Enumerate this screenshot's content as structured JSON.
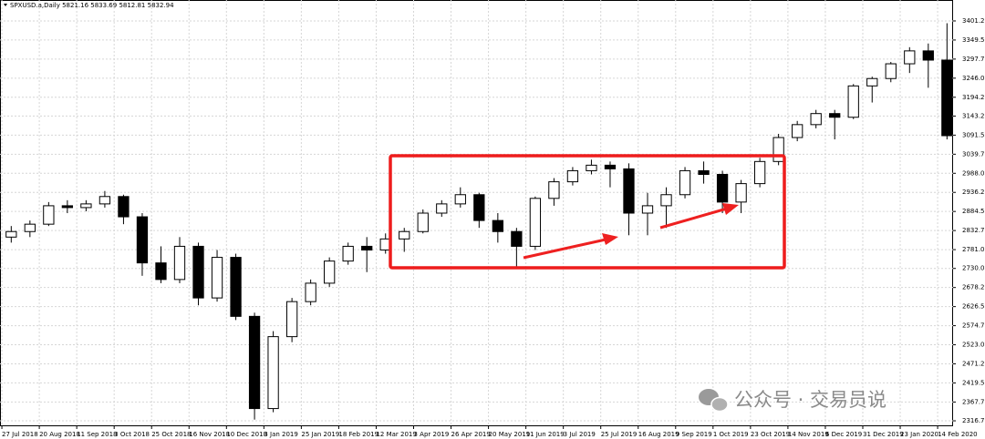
{
  "chart_data": {
    "type": "candlestick",
    "title": "SPXUSD.a,Daily 5821.16 5833.69 5812.81 5832.94",
    "watermark": "公众号 · 交易员说",
    "x": [
      4,
      12,
      20,
      28,
      36,
      44,
      52,
      60,
      68,
      76,
      84,
      92,
      100,
      108,
      116,
      124,
      132,
      140,
      148,
      156,
      164,
      172,
      180,
      188,
      196,
      204,
      212,
      220,
      228,
      236,
      244,
      252,
      260,
      268,
      276,
      284,
      292,
      300,
      308,
      316,
      324,
      332,
      340,
      348,
      356,
      364,
      372,
      380,
      388,
      396,
      404
    ],
    "open": [
      2815,
      2830,
      2850,
      2900,
      2895,
      2905,
      2925,
      2870,
      2745,
      2700,
      2790,
      2650,
      2760,
      2600,
      2350,
      2545,
      2640,
      2690,
      2750,
      2790,
      2780,
      2810,
      2830,
      2880,
      2905,
      2930,
      2860,
      2830,
      2790,
      2920,
      2965,
      2995,
      3010,
      3000,
      2880,
      2900,
      2930,
      2995,
      2985,
      2910,
      2960,
      3020,
      3085,
      3120,
      3150,
      3140,
      3225,
      3245,
      3285,
      3320,
      3295
    ],
    "high": [
      2845,
      2860,
      2910,
      2915,
      2915,
      2940,
      2930,
      2880,
      2790,
      2815,
      2800,
      2780,
      2770,
      2610,
      2560,
      2650,
      2700,
      2760,
      2800,
      2815,
      2825,
      2840,
      2890,
      2915,
      2950,
      2935,
      2880,
      2840,
      2925,
      2975,
      3005,
      3025,
      3020,
      3015,
      2935,
      2950,
      3005,
      3020,
      2995,
      2970,
      3030,
      3095,
      3130,
      3160,
      3160,
      3230,
      3250,
      3290,
      3330,
      3340,
      3395
    ],
    "low": [
      2800,
      2815,
      2845,
      2880,
      2885,
      2895,
      2850,
      2710,
      2690,
      2690,
      2630,
      2640,
      2590,
      2320,
      2340,
      2530,
      2630,
      2680,
      2740,
      2720,
      2770,
      2775,
      2825,
      2870,
      2895,
      2840,
      2800,
      2730,
      2780,
      2900,
      2955,
      2985,
      2950,
      2820,
      2820,
      2840,
      2920,
      2960,
      2880,
      2880,
      2950,
      3010,
      3075,
      3110,
      3080,
      3135,
      3180,
      3235,
      3260,
      3220,
      3080
    ],
    "close": [
      2830,
      2850,
      2900,
      2895,
      2905,
      2925,
      2870,
      2745,
      2700,
      2790,
      2650,
      2760,
      2600,
      2350,
      2545,
      2640,
      2690,
      2750,
      2790,
      2780,
      2810,
      2830,
      2880,
      2905,
      2930,
      2860,
      2830,
      2790,
      2920,
      2965,
      2995,
      3010,
      3000,
      2880,
      2900,
      2930,
      2995,
      2985,
      2910,
      2960,
      3020,
      3085,
      3120,
      3150,
      3140,
      3225,
      3245,
      3285,
      3320,
      3295,
      3090
    ],
    "xlim": [
      -0.8,
      406.6
    ],
    "ylim": [
      2302,
      3458
    ],
    "xticks": [
      {
        "value": 0,
        "label": "27 Jul 2018"
      },
      {
        "value": 16,
        "label": "20 Aug 2018"
      },
      {
        "value": 32,
        "label": "11 Sep 2018"
      },
      {
        "value": 48,
        "label": "3 Oct 2018"
      },
      {
        "value": 64,
        "label": "25 Oct 2018"
      },
      {
        "value": 80,
        "label": "16 Nov 2018"
      },
      {
        "value": 96,
        "label": "10 Dec 2018"
      },
      {
        "value": 112,
        "label": "3 Jan 2019"
      },
      {
        "value": 128,
        "label": "25 Jan 2019"
      },
      {
        "value": 144,
        "label": "18 Feb 2019"
      },
      {
        "value": 160,
        "label": "12 Mar 2019"
      },
      {
        "value": 176,
        "label": "3 Apr 2019"
      },
      {
        "value": 192,
        "label": "26 Apr 2019"
      },
      {
        "value": 208,
        "label": "20 May 2019"
      },
      {
        "value": 224,
        "label": "11 Jun 2019"
      },
      {
        "value": 240,
        "label": "3 Jul 2019"
      },
      {
        "value": 256,
        "label": "25 Jul 2019"
      },
      {
        "value": 272,
        "label": "16 Aug 2019"
      },
      {
        "value": 288,
        "label": "9 Sep 2019"
      },
      {
        "value": 304,
        "label": "1 Oct 2019"
      },
      {
        "value": 320,
        "label": "23 Oct 2019"
      },
      {
        "value": 336,
        "label": "14 Nov 2019"
      },
      {
        "value": 352,
        "label": "6 Dec 2019"
      },
      {
        "value": 368,
        "label": "31 Dec 2019"
      },
      {
        "value": 384,
        "label": "23 Jan 2020"
      },
      {
        "value": 400,
        "label": "14 Feb 2020"
      }
    ],
    "yticks": [
      3401.25,
      {
        "value": 3349.5,
        "label": "3349.50"
      },
      3297.75,
      {
        "value": 3246,
        "label": "3246.00"
      },
      3194.25,
      3143.25,
      {
        "value": 3091.5,
        "label": "3091.50"
      },
      3039.75,
      {
        "value": 2988,
        "label": "2988.00"
      },
      2936.25,
      {
        "value": 2884.5,
        "label": "2884.50"
      },
      2832.75,
      {
        "value": 2781,
        "label": "2781.00"
      },
      {
        "value": 2730,
        "label": "2730.00"
      },
      2678.25,
      {
        "value": 2626.5,
        "label": "2626.50"
      },
      2574.75,
      {
        "value": 2523,
        "label": "2523.00"
      },
      2471.25,
      {
        "value": 2419.5,
        "label": "2419.50"
      },
      2367.75,
      2316.75
    ],
    "grid": true,
    "up_color": "#ffffff",
    "down_color": "#000000",
    "outline_color": "#000000"
  }
}
